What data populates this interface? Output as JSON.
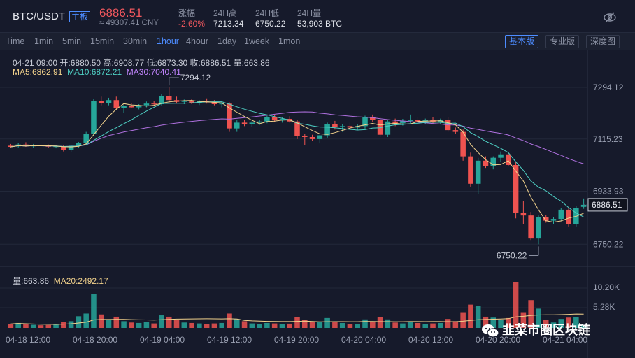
{
  "header": {
    "pair": "BTC/USDT",
    "badge": "主板",
    "price": "6886.51",
    "cny": "≈ 49307.41 CNY",
    "stats": [
      {
        "label": "涨幅",
        "value": "-2.60%",
        "color": "red"
      },
      {
        "label": "24H高",
        "value": "7213.34",
        "color": "white"
      },
      {
        "label": "24H低",
        "value": "6750.22",
        "color": "white"
      },
      {
        "label": "24H量",
        "value": "53,903 BTC",
        "color": "white"
      }
    ],
    "right_icon": "eye-off-icon"
  },
  "toolbar": {
    "timeframes": [
      "Time",
      "1min",
      "5min",
      "15min",
      "30min",
      "1hour",
      "4hour",
      "1day",
      "1week",
      "1mon"
    ],
    "active_timeframe": "1hour",
    "versions": [
      "基本版",
      "专业版",
      "深度图"
    ],
    "active_version": "基本版"
  },
  "legend": {
    "ohlc": "04-21 09:00   开:6880.50  高:6908.77  低:6873.30  收:6886.51  量:663.86",
    "ma5": "MA5:6862.91",
    "ma10": "MA10:6872.21",
    "ma30": "MA30:7040.41",
    "vol": "量:663.86",
    "vol_ma20": "MA20:2492.17"
  },
  "colors": {
    "up": "#26a69a",
    "down": "#ef5350",
    "ma5": "#f2d28c",
    "ma10": "#4fd1c5",
    "ma30": "#b071e0",
    "accent": "#4d8cff"
  },
  "annotations": {
    "high_label": "7294.12",
    "low_label": "6750.22",
    "last_price": "6886.51"
  },
  "watermark": "韭菜市圈区块链",
  "chart_data": {
    "type": "candlestick",
    "price_axis_ticks": [
      "7294.12",
      "7115.23",
      "6933.93",
      "6750.22"
    ],
    "volume_axis_ticks": [
      "10.20K",
      "5.28K"
    ],
    "time_axis_ticks": [
      "04-18 12:00",
      "04-18 20:00",
      "04-19 04:00",
      "04-19 12:00",
      "04-19 20:00",
      "04-20 04:00",
      "04-20 12:00",
      "04-20 20:00",
      "04-21 04:00"
    ],
    "ylim": [
      6700,
      7350
    ],
    "candles": [
      {
        "o": 7092,
        "h": 7098,
        "l": 7085,
        "c": 7088,
        "v": 900
      },
      {
        "o": 7090,
        "h": 7102,
        "l": 7086,
        "c": 7096,
        "v": 1100
      },
      {
        "o": 7096,
        "h": 7104,
        "l": 7088,
        "c": 7090,
        "v": 800
      },
      {
        "o": 7090,
        "h": 7098,
        "l": 7085,
        "c": 7094,
        "v": 700
      },
      {
        "o": 7094,
        "h": 7100,
        "l": 7088,
        "c": 7091,
        "v": 600
      },
      {
        "o": 7091,
        "h": 7096,
        "l": 7086,
        "c": 7089,
        "v": 650
      },
      {
        "o": 7089,
        "h": 7095,
        "l": 7083,
        "c": 7090,
        "v": 700
      },
      {
        "o": 7090,
        "h": 7094,
        "l": 7072,
        "c": 7077,
        "v": 1300
      },
      {
        "o": 7077,
        "h": 7095,
        "l": 7070,
        "c": 7092,
        "v": 1500
      },
      {
        "o": 7092,
        "h": 7105,
        "l": 7085,
        "c": 7102,
        "v": 2600
      },
      {
        "o": 7102,
        "h": 7140,
        "l": 7095,
        "c": 7132,
        "v": 3200
      },
      {
        "o": 7132,
        "h": 7255,
        "l": 7125,
        "c": 7248,
        "v": 7500
      },
      {
        "o": 7248,
        "h": 7262,
        "l": 7232,
        "c": 7240,
        "v": 3000
      },
      {
        "o": 7240,
        "h": 7258,
        "l": 7232,
        "c": 7250,
        "v": 1800
      },
      {
        "o": 7250,
        "h": 7262,
        "l": 7215,
        "c": 7222,
        "v": 2500
      },
      {
        "o": 7222,
        "h": 7235,
        "l": 7205,
        "c": 7230,
        "v": 1500
      },
      {
        "o": 7230,
        "h": 7240,
        "l": 7222,
        "c": 7225,
        "v": 1200
      },
      {
        "o": 7225,
        "h": 7236,
        "l": 7218,
        "c": 7232,
        "v": 1100
      },
      {
        "o": 7232,
        "h": 7245,
        "l": 7225,
        "c": 7238,
        "v": 1300
      },
      {
        "o": 7238,
        "h": 7248,
        "l": 7230,
        "c": 7236,
        "v": 1000
      },
      {
        "o": 7236,
        "h": 7270,
        "l": 7232,
        "c": 7264,
        "v": 2800
      },
      {
        "o": 7264,
        "h": 7294,
        "l": 7240,
        "c": 7250,
        "v": 2500
      },
      {
        "o": 7250,
        "h": 7262,
        "l": 7238,
        "c": 7244,
        "v": 1800
      },
      {
        "o": 7244,
        "h": 7252,
        "l": 7236,
        "c": 7247,
        "v": 1200
      },
      {
        "o": 7247,
        "h": 7255,
        "l": 7236,
        "c": 7240,
        "v": 1100
      },
      {
        "o": 7240,
        "h": 7250,
        "l": 7233,
        "c": 7246,
        "v": 1000
      },
      {
        "o": 7246,
        "h": 7256,
        "l": 7238,
        "c": 7242,
        "v": 900
      },
      {
        "o": 7242,
        "h": 7250,
        "l": 7232,
        "c": 7236,
        "v": 1000
      },
      {
        "o": 7236,
        "h": 7245,
        "l": 7225,
        "c": 7238,
        "v": 1100
      },
      {
        "o": 7238,
        "h": 7242,
        "l": 7140,
        "c": 7152,
        "v": 3200
      },
      {
        "o": 7152,
        "h": 7180,
        "l": 7140,
        "c": 7172,
        "v": 2000
      },
      {
        "o": 7172,
        "h": 7182,
        "l": 7160,
        "c": 7168,
        "v": 1500
      },
      {
        "o": 7168,
        "h": 7178,
        "l": 7158,
        "c": 7172,
        "v": 1000
      },
      {
        "o": 7172,
        "h": 7182,
        "l": 7164,
        "c": 7176,
        "v": 900
      },
      {
        "o": 7176,
        "h": 7196,
        "l": 7170,
        "c": 7190,
        "v": 1100
      },
      {
        "o": 7190,
        "h": 7198,
        "l": 7175,
        "c": 7180,
        "v": 1000
      },
      {
        "o": 7180,
        "h": 7190,
        "l": 7172,
        "c": 7185,
        "v": 900
      },
      {
        "o": 7185,
        "h": 7194,
        "l": 7172,
        "c": 7176,
        "v": 950
      },
      {
        "o": 7176,
        "h": 7182,
        "l": 7115,
        "c": 7125,
        "v": 2400
      },
      {
        "o": 7125,
        "h": 7132,
        "l": 7095,
        "c": 7122,
        "v": 1800
      },
      {
        "o": 7122,
        "h": 7130,
        "l": 7108,
        "c": 7115,
        "v": 1300
      },
      {
        "o": 7115,
        "h": 7130,
        "l": 7100,
        "c": 7128,
        "v": 1300
      },
      {
        "o": 7128,
        "h": 7172,
        "l": 7120,
        "c": 7166,
        "v": 2200
      },
      {
        "o": 7166,
        "h": 7178,
        "l": 7148,
        "c": 7156,
        "v": 1300
      },
      {
        "o": 7156,
        "h": 7168,
        "l": 7140,
        "c": 7160,
        "v": 1100
      },
      {
        "o": 7160,
        "h": 7172,
        "l": 7150,
        "c": 7155,
        "v": 900
      },
      {
        "o": 7155,
        "h": 7168,
        "l": 7146,
        "c": 7160,
        "v": 900
      },
      {
        "o": 7160,
        "h": 7196,
        "l": 7150,
        "c": 7190,
        "v": 1900
      },
      {
        "o": 7190,
        "h": 7200,
        "l": 7175,
        "c": 7182,
        "v": 1300
      },
      {
        "o": 7182,
        "h": 7192,
        "l": 7122,
        "c": 7130,
        "v": 2400
      },
      {
        "o": 7130,
        "h": 7182,
        "l": 7122,
        "c": 7176,
        "v": 1900
      },
      {
        "o": 7176,
        "h": 7186,
        "l": 7160,
        "c": 7170,
        "v": 1200
      },
      {
        "o": 7170,
        "h": 7185,
        "l": 7162,
        "c": 7178,
        "v": 1000
      },
      {
        "o": 7178,
        "h": 7200,
        "l": 7170,
        "c": 7182,
        "v": 1400
      },
      {
        "o": 7182,
        "h": 7192,
        "l": 7172,
        "c": 7176,
        "v": 1100
      },
      {
        "o": 7176,
        "h": 7186,
        "l": 7166,
        "c": 7181,
        "v": 900
      },
      {
        "o": 7181,
        "h": 7190,
        "l": 7168,
        "c": 7172,
        "v": 1000
      },
      {
        "o": 7172,
        "h": 7186,
        "l": 7166,
        "c": 7182,
        "v": 1100
      },
      {
        "o": 7182,
        "h": 7192,
        "l": 7140,
        "c": 7146,
        "v": 2000
      },
      {
        "o": 7146,
        "h": 7155,
        "l": 7132,
        "c": 7140,
        "v": 1500
      },
      {
        "o": 7140,
        "h": 7148,
        "l": 7040,
        "c": 7055,
        "v": 3500
      },
      {
        "o": 7055,
        "h": 7068,
        "l": 6950,
        "c": 6960,
        "v": 5200
      },
      {
        "o": 6960,
        "h": 7050,
        "l": 6925,
        "c": 7040,
        "v": 4900
      },
      {
        "o": 7040,
        "h": 7055,
        "l": 7015,
        "c": 7022,
        "v": 2500
      },
      {
        "o": 7022,
        "h": 7055,
        "l": 7010,
        "c": 7050,
        "v": 2300
      },
      {
        "o": 7050,
        "h": 7072,
        "l": 7035,
        "c": 7062,
        "v": 1800
      },
      {
        "o": 7062,
        "h": 7070,
        "l": 7020,
        "c": 7025,
        "v": 2200
      },
      {
        "o": 7025,
        "h": 7035,
        "l": 6840,
        "c": 6860,
        "v": 10200
      },
      {
        "o": 6860,
        "h": 6900,
        "l": 6820,
        "c": 6850,
        "v": 3500
      },
      {
        "o": 6850,
        "h": 6862,
        "l": 6765,
        "c": 6770,
        "v": 6200
      },
      {
        "o": 6770,
        "h": 6850,
        "l": 6750,
        "c": 6845,
        "v": 4300
      },
      {
        "o": 6845,
        "h": 6852,
        "l": 6825,
        "c": 6832,
        "v": 1800
      },
      {
        "o": 6832,
        "h": 6845,
        "l": 6820,
        "c": 6838,
        "v": 1200
      },
      {
        "o": 6838,
        "h": 6875,
        "l": 6830,
        "c": 6870,
        "v": 2000
      },
      {
        "o": 6870,
        "h": 6880,
        "l": 6812,
        "c": 6820,
        "v": 2300
      },
      {
        "o": 6820,
        "h": 6882,
        "l": 6812,
        "c": 6875,
        "v": 2400
      },
      {
        "o": 6880,
        "h": 6909,
        "l": 6873,
        "c": 6887,
        "v": 664
      }
    ]
  }
}
